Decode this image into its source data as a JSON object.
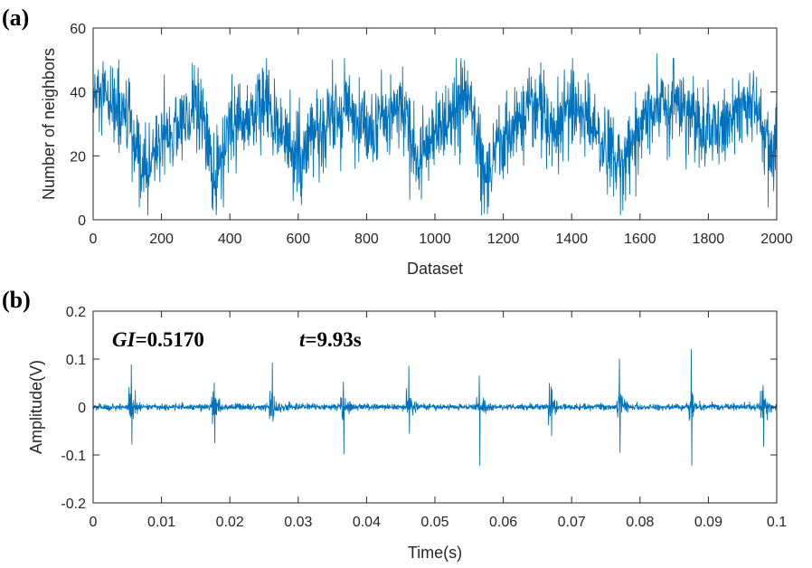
{
  "chart_data": [
    {
      "type": "line",
      "panel_label": "(a)",
      "xlabel": "Dataset",
      "ylabel": "Number of neighbors",
      "xlim": [
        0,
        2000
      ],
      "ylim": [
        0,
        60
      ],
      "xticks": [
        0,
        200,
        400,
        600,
        800,
        1000,
        1200,
        1400,
        1600,
        1800,
        2000
      ],
      "yticks": [
        0,
        20,
        40,
        60
      ],
      "xtick_labels": [
        "0",
        "200",
        "400",
        "600",
        "800",
        "1000",
        "1200",
        "1400",
        "1600",
        "1800",
        "2000"
      ],
      "ytick_labels": [
        "0",
        "20",
        "40",
        "60"
      ],
      "grid": false,
      "color": "#0072BD",
      "n_points": 2000,
      "series": [
        {
          "envelope_points": {
            "x": [
              0,
              50,
              100,
              130,
              150,
              200,
              260,
              300,
              340,
              360,
              400,
              450,
              500,
              560,
              600,
              650,
              700,
              750,
              800,
              850,
              900,
              950,
              1000,
              1050,
              1100,
              1150,
              1200,
              1250,
              1300,
              1350,
              1400,
              1450,
              1500,
              1550,
              1600,
              1650,
              1700,
              1750,
              1800,
              1850,
              1900,
              1950,
              1990,
              2000
            ],
            "y": [
              38,
              36,
              32,
              18,
              14,
              26,
              30,
              36,
              22,
              12,
              28,
              32,
              36,
              27,
              18,
              26,
              33,
              35,
              26,
              31,
              36,
              18,
              28,
              33,
              38,
              14,
              24,
              31,
              36,
              26,
              36,
              33,
              23,
              18,
              30,
              35,
              38,
              33,
              26,
              30,
              36,
              33,
              15,
              30
            ]
          },
          "peak_points": {
            "x": [
              75,
              290,
              700,
              1650
            ],
            "y": [
              50,
              49,
              50,
              52
            ]
          },
          "trough_points": {
            "x": [
              135,
              350,
              1145,
              1550,
              1975
            ],
            "y": [
              4,
              3,
              2,
              3,
              4
            ]
          }
        }
      ]
    },
    {
      "type": "line",
      "panel_label": "(b)",
      "xlabel": "Time(s)",
      "ylabel": "Amplitude(V)",
      "xlim": [
        0,
        0.1
      ],
      "ylim": [
        -0.2,
        0.2
      ],
      "xticks": [
        0,
        0.01,
        0.02,
        0.03,
        0.04,
        0.05,
        0.06,
        0.07,
        0.08,
        0.09,
        0.1
      ],
      "yticks": [
        -0.2,
        -0.1,
        0,
        0.1,
        0.2
      ],
      "xtick_labels": [
        "0",
        "0.01",
        "0.02",
        "0.03",
        "0.04",
        "0.05",
        "0.06",
        "0.07",
        "0.08",
        "0.09",
        "0.1"
      ],
      "ytick_labels": [
        "-0.2",
        "-0.1",
        "0",
        "0.1",
        "0.2"
      ],
      "grid": false,
      "color": "#0072BD",
      "annotations": {
        "gi_label": "GI",
        "gi_value": "=0.5170",
        "t_label": "t",
        "t_value": "=9.93s"
      },
      "n_points": 2400,
      "noise_level": 0.006,
      "series": [
        {
          "impulses": [
            {
              "t": 0.0056,
              "amp": 0.088,
              "neg": -0.078
            },
            {
              "t": 0.0177,
              "amp": 0.05,
              "neg": -0.075
            },
            {
              "t": 0.0262,
              "amp": 0.092,
              "neg": -0.03
            },
            {
              "t": 0.0366,
              "amp": 0.052,
              "neg": -0.098
            },
            {
              "t": 0.0462,
              "amp": 0.085,
              "neg": -0.055
            },
            {
              "t": 0.0565,
              "amp": 0.065,
              "neg": -0.122
            },
            {
              "t": 0.067,
              "amp": 0.042,
              "neg": -0.06
            },
            {
              "t": 0.077,
              "amp": 0.1,
              "neg": -0.095
            },
            {
              "t": 0.0875,
              "amp": 0.12,
              "neg": -0.122
            },
            {
              "t": 0.098,
              "amp": 0.045,
              "neg": -0.082
            }
          ]
        }
      ]
    }
  ]
}
